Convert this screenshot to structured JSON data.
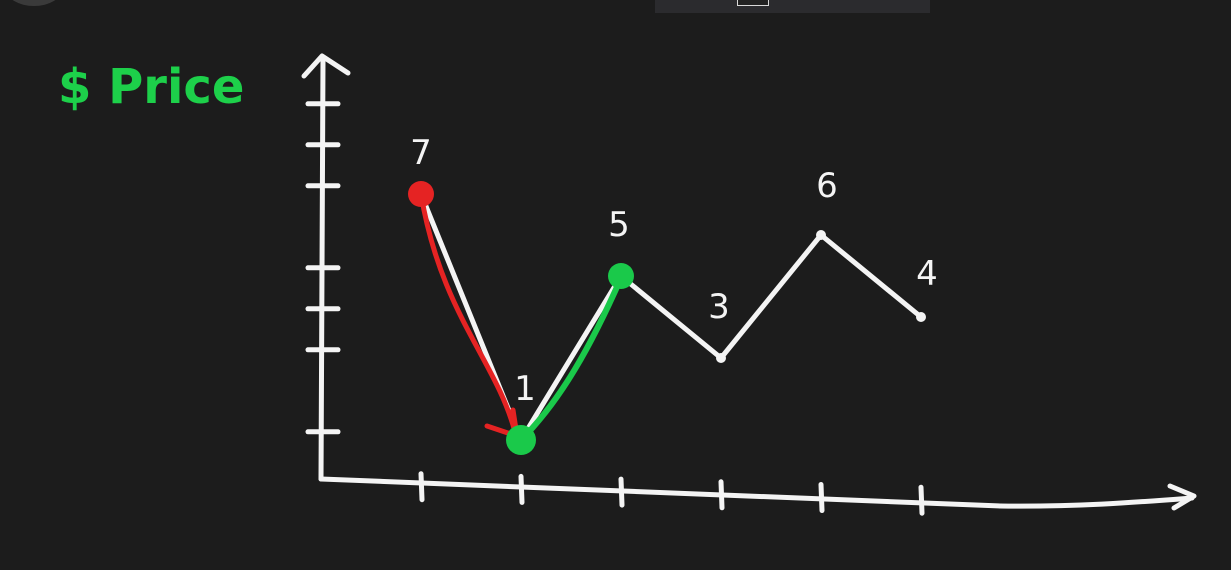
{
  "colors": {
    "background": "#1c1c1c",
    "ink": "#f4f4f4",
    "sell": "#e52323",
    "buy": "#1ac94a",
    "label_green": "#1dd04a"
  },
  "chart_data": {
    "type": "line",
    "title": "$ Price",
    "ylabel": "$ Price",
    "xlabel": "",
    "x": [
      1,
      2,
      3,
      4,
      5,
      6
    ],
    "values": [
      7,
      1,
      5,
      3,
      6,
      4
    ],
    "value_labels": [
      "7",
      "1",
      "5",
      "3",
      "6",
      "4"
    ],
    "ylim": [
      0,
      9
    ],
    "xlim": [
      0,
      6
    ],
    "grid": false,
    "highlights": {
      "sell_point_index": 0,
      "buy_point_index": 1,
      "profit_target_index": 2
    }
  }
}
